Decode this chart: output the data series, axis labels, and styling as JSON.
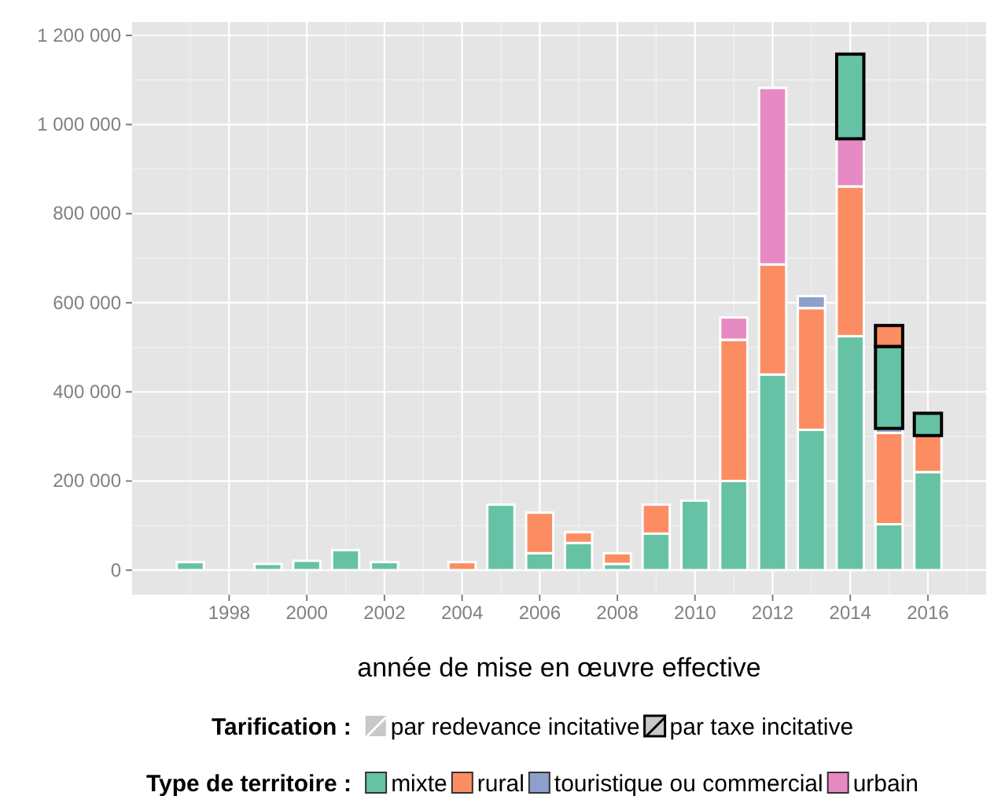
{
  "chart_data": {
    "type": "bar",
    "stacked": true,
    "xlabel": "année de mise en œuvre effective",
    "legend_title": "Type de territoire :",
    "legend": "bottom",
    "grid": true,
    "x": [
      1997,
      1998,
      1999,
      2000,
      2001,
      2002,
      2003,
      2004,
      2005,
      2006,
      2007,
      2008,
      2009,
      2010,
      2011,
      2012,
      2013,
      2014,
      2015,
      2016
    ],
    "xlim": [
      1995.5,
      2017.5
    ],
    "xticks": [
      1998,
      2000,
      2002,
      2004,
      2006,
      2008,
      2010,
      2012,
      2014,
      2016
    ],
    "ylim": [
      -55000,
      1230000
    ],
    "yticks": [
      0,
      {
        "value": 200000,
        "label": "200 000"
      },
      {
        "value": 400000,
        "label": "400 000"
      },
      {
        "value": 600000,
        "label": "600 000"
      },
      {
        "value": 800000,
        "label": "800 000"
      },
      {
        "value": 1000000,
        "label": "1 000 000"
      },
      {
        "value": 1200000,
        "label": "1 200 000"
      }
    ],
    "annotations": [
      "Tarification :",
      "par redevance incitative",
      "par taxe incitative"
    ],
    "series": [
      {
        "name": "mixte",
        "color": "#66c2a5",
        "values": [
          18000,
          null,
          14000,
          21000,
          45000,
          18000,
          null,
          null,
          147000,
          38000,
          61000,
          14000,
          82000,
          156000,
          200000,
          439000,
          315000,
          525000,
          103000,
          220000
        ]
      },
      {
        "name": "rural",
        "color": "#fc8d62",
        "values": [
          null,
          null,
          null,
          null,
          null,
          null,
          null,
          18000,
          null,
          91000,
          24000,
          24000,
          65000,
          null,
          317000,
          247000,
          273000,
          336000,
          205000,
          82000
        ]
      },
      {
        "name": "touristique ou commercial",
        "color": "#8da0cb",
        "values": [
          null,
          null,
          null,
          null,
          null,
          null,
          null,
          null,
          null,
          null,
          null,
          null,
          null,
          null,
          null,
          null,
          27000,
          null,
          10000,
          null
        ]
      },
      {
        "name": "urbain",
        "color": "#e78ac3",
        "values": [
          null,
          null,
          null,
          null,
          null,
          null,
          null,
          null,
          null,
          null,
          null,
          null,
          null,
          null,
          50000,
          396000,
          null,
          107000,
          null,
          null
        ]
      },
      {
        "color": "#66c2a5",
        "values": [
          null,
          null,
          null,
          null,
          null,
          null,
          null,
          null,
          null,
          null,
          null,
          null,
          null,
          null,
          null,
          null,
          null,
          190000,
          184000,
          50000
        ]
      },
      {
        "color": "#fc8d62",
        "values": [
          null,
          null,
          null,
          null,
          null,
          null,
          null,
          null,
          null,
          null,
          null,
          null,
          null,
          null,
          null,
          null,
          null,
          null,
          47000,
          null
        ]
      }
    ]
  }
}
